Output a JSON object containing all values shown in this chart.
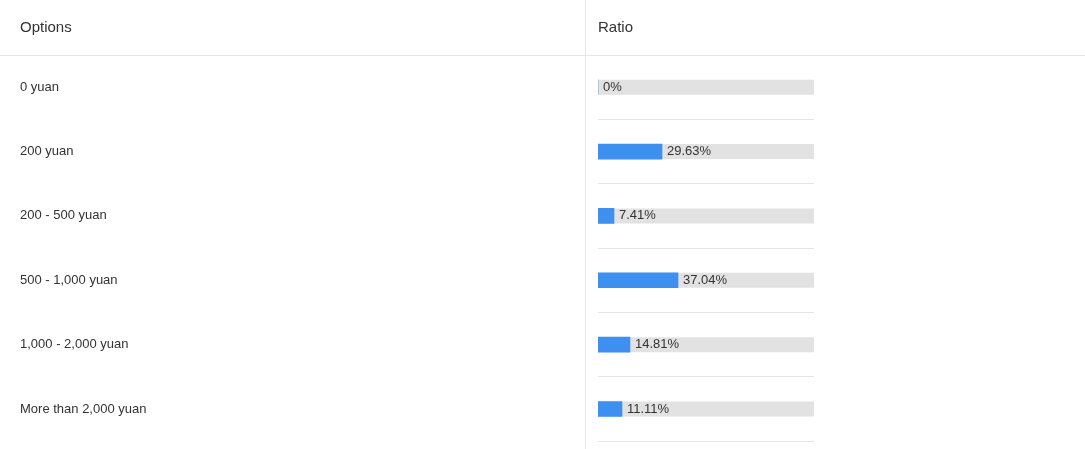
{
  "chart_data": {
    "type": "bar",
    "orientation": "horizontal",
    "ylabel": "Options",
    "xlabel": "Ratio",
    "categories": [
      "0 yuan",
      "200 yuan",
      "200 - 500 yuan",
      "500 - 1,000 yuan",
      "1,000 - 2,000 yuan",
      "More than 2,000 yuan"
    ],
    "values": [
      0,
      29.63,
      7.41,
      37.04,
      14.81,
      11.11
    ],
    "value_labels": [
      "0%",
      "29.63%",
      "7.41%",
      "37.04%",
      "14.81%",
      "11.11%"
    ],
    "color": "#3d8ff0",
    "xlim": [
      0,
      100
    ],
    "grid": "y",
    "tick_labels": "y",
    "legend": false
  }
}
